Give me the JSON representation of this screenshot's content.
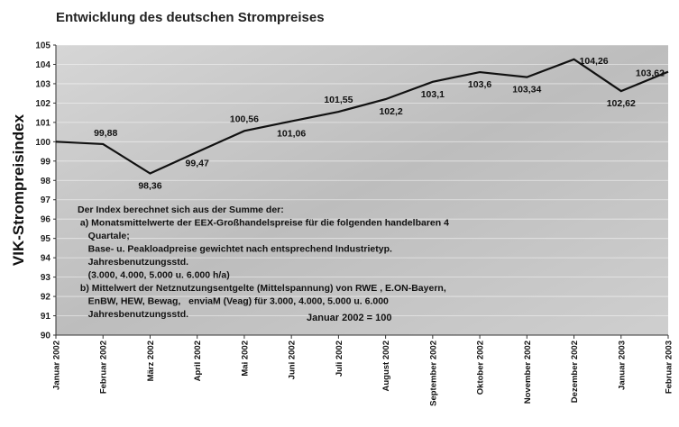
{
  "chart_data": {
    "type": "line",
    "title": "Entwicklung des deutschen Strompreises",
    "y_label": "VIK-Strompreisindex",
    "categories": [
      "Januar 2002",
      "Februar 2002",
      "März 2002",
      "April 2002",
      "Mai 2002",
      "Juni 2002",
      "Juli 2002",
      "August 2002",
      "September 2002",
      "Oktober 2002",
      "November 2002",
      "Dezember 2002",
      "Januar 2003",
      "Februar 2003"
    ],
    "series": [
      {
        "name": "VIK-Strompreisindex",
        "color": "#111111",
        "values": [
          100,
          99.88,
          98.36,
          99.47,
          100.56,
          101.06,
          101.55,
          102.2,
          103.1,
          103.6,
          103.34,
          104.26,
          102.62,
          103.62
        ],
        "value_labels": [
          null,
          "99,88",
          "98,36",
          "99,47",
          "100,56",
          "101,06",
          "101,55",
          "102,2",
          "103,1",
          "103,6",
          "103,34",
          "104,26",
          "102,62",
          "103,62"
        ]
      }
    ],
    "ylim": [
      90,
      105
    ],
    "yticks": [
      90,
      91,
      92,
      93,
      94,
      95,
      96,
      97,
      98,
      99,
      100,
      101,
      102,
      103,
      104,
      105
    ],
    "grid": true,
    "annotation": [
      "Der Index berechnet sich aus der Summe der:",
      " a) Monatsmittelwerte der EEX-Großhandelspreise für die folgenden handelbaren 4",
      "    Quartale;",
      "    Base- u. Peakloadpreise gewichtet nach entsprechend Industrietyp.",
      "    Jahresbenutzungsstd.",
      "    (3.000, 4.000, 5.000 u. 6.000 h/a)",
      " b) Mittelwert der Netznutzungsentgelte (Mittelspannung) von RWE , E.ON-Bayern,",
      "    EnBW, HEW, Bewag,   enviaM (Veag) für 3.000, 4.000, 5.000 u. 6.000",
      "    Jahresbenutzungsstd."
    ],
    "base_note": "Januar 2002 = 100"
  }
}
